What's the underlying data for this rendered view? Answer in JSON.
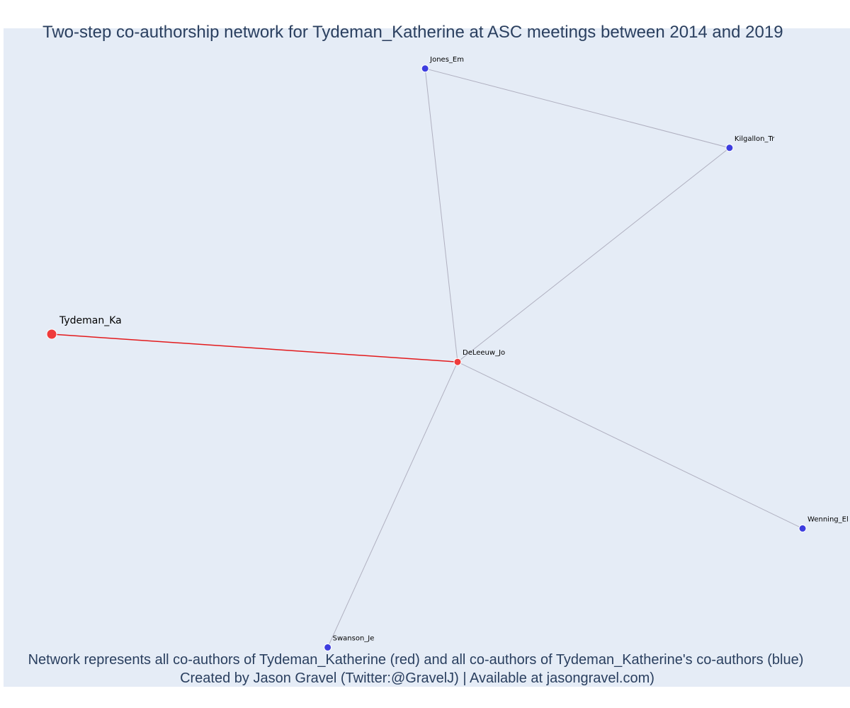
{
  "title": "Two-step co-authorship network for Tydeman_Katherine at ASC meetings between 2014 and 2019",
  "caption": {
    "line1": "Network represents all co-authors of Tydeman_Katherine (red) and all co-authors of Tydeman_Katherine's co-authors (blue)",
    "line2": "Created by Jason Gravel (Twitter:@GravelJ) | Available at jasongravel.com)"
  },
  "colors": {
    "plot_bg": "#e5ecf6",
    "focal_node": "#ef3b3b",
    "coauthor_node": "#3d3ddf",
    "focal_edge": "#e31a1c",
    "other_edge": "#b0b0c0",
    "text": "#2a3f5f"
  },
  "chart_data": {
    "type": "network",
    "nodes": [
      {
        "id": "Tydeman_Ka",
        "label": "Tydeman_Ka",
        "group": "focal",
        "x": 0.0,
        "y": 0.0
      },
      {
        "id": "DeLeeuw_Jo",
        "label": "DeLeeuw_Jo",
        "group": "co-author",
        "x": 1.0,
        "y": -0.07
      },
      {
        "id": "Jones_Em",
        "label": "Jones_Em",
        "group": "co-author-of-co-author",
        "x": 0.92,
        "y": 0.67
      },
      {
        "id": "Kilgallon_Tr",
        "label": "Kilgallon_Tr",
        "group": "co-author-of-co-author",
        "x": 1.67,
        "y": 0.47
      },
      {
        "id": "Wenning_El",
        "label": "Wenning_El",
        "group": "co-author-of-co-author",
        "x": 1.85,
        "y": -0.49
      },
      {
        "id": "Swanson_Je",
        "label": "Swanson_Je",
        "group": "co-author-of-co-author",
        "x": 0.68,
        "y": -0.79
      }
    ],
    "edges": [
      {
        "source": "Tydeman_Ka",
        "target": "DeLeeuw_Jo",
        "type": "focal"
      },
      {
        "source": "DeLeeuw_Jo",
        "target": "Jones_Em",
        "type": "other"
      },
      {
        "source": "DeLeeuw_Jo",
        "target": "Kilgallon_Tr",
        "type": "other"
      },
      {
        "source": "DeLeeuw_Jo",
        "target": "Wenning_El",
        "type": "other"
      },
      {
        "source": "DeLeeuw_Jo",
        "target": "Swanson_Je",
        "type": "other"
      },
      {
        "source": "Jones_Em",
        "target": "Kilgallon_Tr",
        "type": "other"
      }
    ]
  }
}
